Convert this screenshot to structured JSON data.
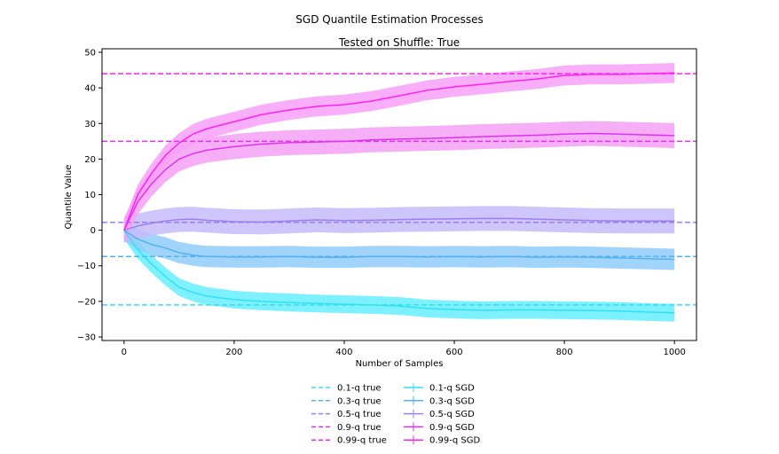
{
  "chart_data": {
    "type": "line",
    "title": "SGD Quantile Estimation Processes",
    "subtitle": "Tested on Shuffle: True",
    "xlabel": "Number of Samples",
    "ylabel": "Quantile Value",
    "xlim": [
      -40,
      1040
    ],
    "ylim": [
      -31,
      51
    ],
    "xticks": [
      0,
      200,
      400,
      600,
      800,
      1000
    ],
    "yticks": [
      -30,
      -20,
      -10,
      0,
      10,
      20,
      30,
      40,
      50
    ],
    "grid": false,
    "legend_position": "below",
    "true_lines": [
      {
        "name": "0.1-q true",
        "value": -21,
        "color": "#33e0f0"
      },
      {
        "name": "0.3-q true",
        "value": -7.4,
        "color": "#55b0f0"
      },
      {
        "name": "0.5-q true",
        "value": 2.2,
        "color": "#9980f0"
      },
      {
        "name": "0.9-q true",
        "value": 25,
        "color": "#dd33ee"
      },
      {
        "name": "0.99-q true",
        "value": 44,
        "color": "#ff22ee"
      }
    ],
    "series": [
      {
        "name": "0.1-q SGD",
        "color": "#33e0f0",
        "band_color": "#66eeff",
        "x": [
          0,
          25,
          50,
          75,
          100,
          125,
          150,
          200,
          250,
          300,
          350,
          400,
          450,
          500,
          550,
          600,
          650,
          700,
          750,
          800,
          850,
          900,
          950,
          1000
        ],
        "y": [
          0,
          -5.5,
          -9.5,
          -13,
          -16,
          -17.5,
          -18.5,
          -19.5,
          -20,
          -20.3,
          -20.6,
          -20.8,
          -21,
          -21.3,
          -22,
          -22.3,
          -22.5,
          -22.4,
          -22.4,
          -22.5,
          -22.6,
          -22.7,
          -23,
          -23.2
        ],
        "band_halfwidth": 2.5
      },
      {
        "name": "0.3-q SGD",
        "color": "#55b0f0",
        "band_color": "#8fcdf9",
        "x": [
          0,
          25,
          50,
          75,
          100,
          125,
          150,
          200,
          250,
          300,
          350,
          400,
          450,
          500,
          550,
          600,
          650,
          700,
          750,
          800,
          850,
          900,
          950,
          1000
        ],
        "y": [
          0,
          -2.5,
          -4,
          -5,
          -6.3,
          -7,
          -7.4,
          -7.5,
          -7.5,
          -7.4,
          -7.6,
          -7.6,
          -7.4,
          -7.4,
          -7.5,
          -7.4,
          -7.5,
          -7.4,
          -7.6,
          -7.5,
          -7.6,
          -7.8,
          -8,
          -8.2
        ],
        "band_halfwidth": 3
      },
      {
        "name": "0.5-q SGD",
        "color": "#9980f0",
        "band_color": "#c6bbfa",
        "x": [
          0,
          25,
          50,
          75,
          100,
          125,
          150,
          200,
          250,
          300,
          350,
          400,
          450,
          500,
          550,
          600,
          650,
          700,
          750,
          800,
          850,
          900,
          950,
          1000
        ],
        "y": [
          0,
          1.2,
          2,
          2.6,
          3,
          3.1,
          2.8,
          2.4,
          2.3,
          2.6,
          2.9,
          2.7,
          2.8,
          3,
          3.1,
          3.2,
          3.3,
          3.3,
          3.1,
          2.9,
          2.7,
          2.6,
          2.6,
          2.6
        ],
        "band_halfwidth": 3.5
      },
      {
        "name": "0.9-q SGD",
        "color": "#dd33ee",
        "band_color": "#f5a0f5",
        "x": [
          0,
          25,
          50,
          75,
          100,
          125,
          150,
          200,
          250,
          300,
          350,
          400,
          450,
          500,
          550,
          600,
          650,
          700,
          750,
          800,
          850,
          900,
          950,
          1000
        ],
        "y": [
          0,
          8,
          13,
          17,
          20,
          21.5,
          22.5,
          23.5,
          24.2,
          24.6,
          24.8,
          25,
          25.4,
          25.6,
          25.8,
          26,
          26.3,
          26.5,
          26.7,
          27,
          27.2,
          27,
          26.8,
          26.6
        ],
        "band_halfwidth": 3.5
      },
      {
        "name": "0.99-q SGD",
        "color": "#ff22ee",
        "band_color": "#f8a0f8",
        "x": [
          0,
          25,
          50,
          75,
          100,
          125,
          150,
          200,
          250,
          300,
          350,
          400,
          450,
          500,
          550,
          600,
          650,
          700,
          750,
          800,
          850,
          900,
          950,
          1000
        ],
        "y": [
          0,
          10,
          16,
          21,
          24.5,
          27,
          28.5,
          30.5,
          32.5,
          33.8,
          34.8,
          35.3,
          36.3,
          37.8,
          39.3,
          40.3,
          41,
          41.8,
          42.5,
          43.5,
          43.8,
          43.8,
          44,
          44.2
        ],
        "band_halfwidth": 2.8
      }
    ]
  }
}
